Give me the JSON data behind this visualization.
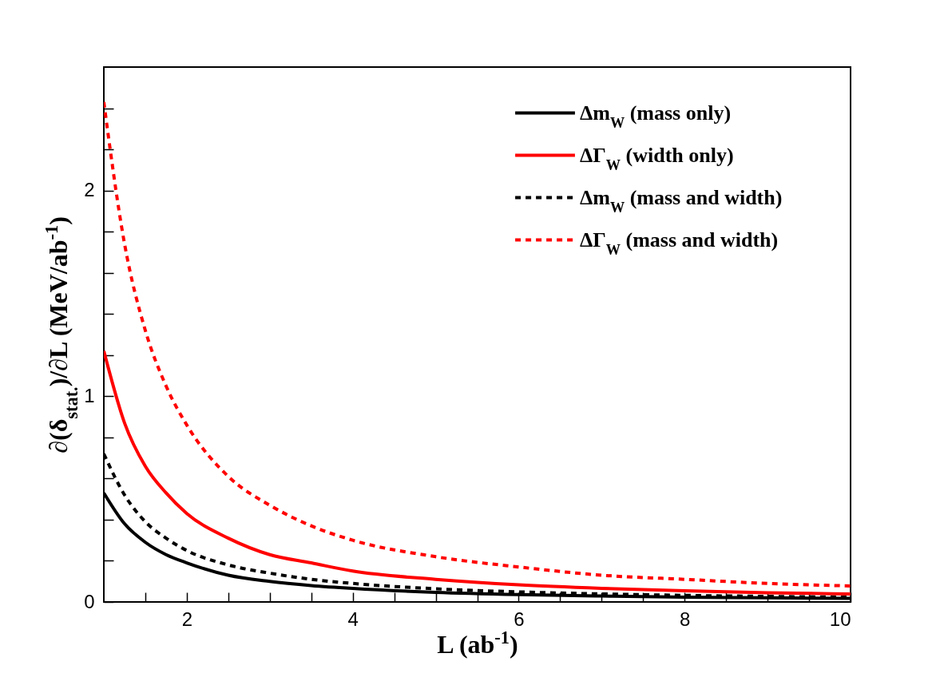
{
  "chart_data": {
    "type": "line",
    "xlabel": "L (ab$^{-1}$)",
    "ylabel": "∂(δ$_{stat.}$)/∂L (MeV/ab$^{-1}$)",
    "x": [
      1,
      1.25,
      1.5,
      1.75,
      2,
      2.5,
      3,
      3.5,
      4,
      5,
      6,
      7,
      8,
      9,
      10
    ],
    "xlim": [
      1,
      10
    ],
    "xticks": [
      {
        "value": 1.5,
        "label": null
      },
      2,
      {
        "value": 2.5,
        "label": null
      },
      {
        "value": 3,
        "label": null
      },
      {
        "value": 3.5,
        "label": null
      },
      4,
      {
        "value": 4.5,
        "label": null
      },
      {
        "value": 5,
        "label": null
      },
      {
        "value": 5.5,
        "label": null
      },
      6,
      {
        "value": 6.5,
        "label": null
      },
      {
        "value": 7,
        "label": null
      },
      {
        "value": 7.5,
        "label": null
      },
      8,
      {
        "value": 8.5,
        "label": null
      },
      {
        "value": 9,
        "label": null
      },
      {
        "value": 9.5,
        "label": null
      },
      10
    ],
    "ylim": [
      0,
      2.6
    ],
    "yticks": [
      0,
      {
        "value": 0.2,
        "label": null
      },
      {
        "value": 0.4,
        "label": null
      },
      {
        "value": 0.6,
        "label": null
      },
      {
        "value": 0.8,
        "label": null
      },
      1,
      {
        "value": 1.2,
        "label": null
      },
      {
        "value": 1.4,
        "label": null
      },
      {
        "value": 1.6,
        "label": null
      },
      {
        "value": 1.8,
        "label": null
      },
      2,
      {
        "value": 2.2,
        "label": null
      },
      {
        "value": 2.4,
        "label": null
      }
    ],
    "grid": false,
    "legend": "top right",
    "marker": "none",
    "series": [
      {
        "name": "Δm$_{W}$ (mass only)",
        "color": "#000000",
        "line_style": "solid",
        "values": [
          0.53,
          0.38,
          0.29,
          0.23,
          0.19,
          0.13,
          0.1,
          0.08,
          0.066,
          0.047,
          0.036,
          0.029,
          0.023,
          0.02,
          0.017
        ]
      },
      {
        "name": "ΔΓ$_{W}$ (width only)",
        "color": "#ff0000",
        "line_style": "solid",
        "values": [
          1.22,
          0.87,
          0.66,
          0.53,
          0.43,
          0.31,
          0.23,
          0.19,
          0.15,
          0.11,
          0.083,
          0.066,
          0.054,
          0.045,
          0.039
        ]
      },
      {
        "name": "Δm$_{W}$ (mass and width)",
        "color": "#000000",
        "line_style": "dotted",
        "values": [
          0.72,
          0.52,
          0.39,
          0.31,
          0.25,
          0.18,
          0.14,
          0.11,
          0.09,
          0.064,
          0.049,
          0.039,
          0.032,
          0.027,
          0.023
        ]
      },
      {
        "name": "ΔΓ$_{W}$ (mass and width)",
        "color": "#ff0000",
        "line_style": "dotted",
        "values": [
          2.43,
          1.74,
          1.32,
          1.05,
          0.86,
          0.61,
          0.47,
          0.37,
          0.3,
          0.22,
          0.17,
          0.13,
          0.11,
          0.09,
          0.078
        ]
      }
    ]
  }
}
